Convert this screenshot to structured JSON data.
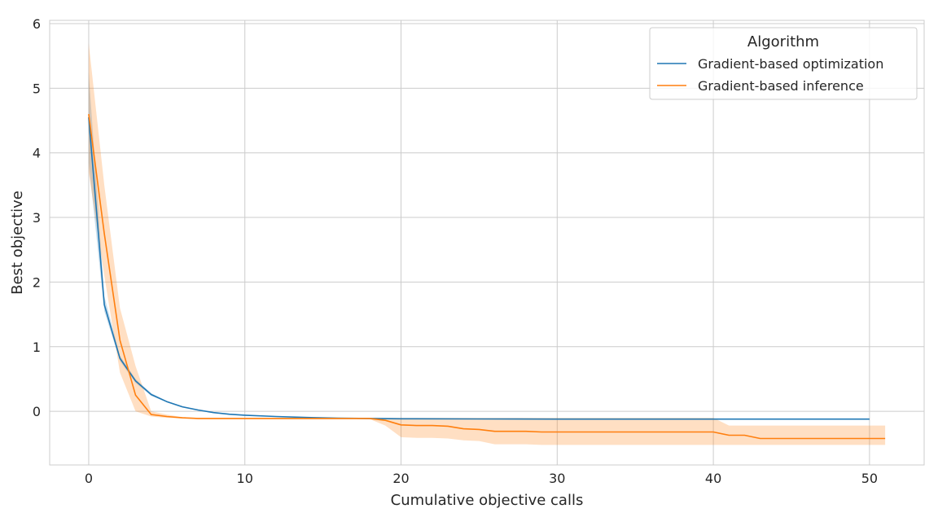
{
  "chart_data": {
    "type": "line",
    "xlabel": "Cumulative objective calls",
    "ylabel": "Best objective",
    "xlim": [
      -2.5,
      53.5
    ],
    "ylim": [
      -0.83,
      6.05
    ],
    "x_ticks": [
      0,
      10,
      20,
      30,
      40,
      50
    ],
    "y_ticks": [
      0,
      1,
      2,
      3,
      4,
      5,
      6
    ],
    "grid": true,
    "legend": {
      "title": "Algorithm",
      "placement": "top-right"
    },
    "series": [
      {
        "name": "Gradient-based optimization",
        "color": "#1f77b4",
        "x": [
          0,
          1,
          2,
          3,
          4,
          5,
          6,
          7,
          8,
          9,
          10,
          12,
          14,
          16,
          18,
          20,
          25,
          30,
          35,
          40,
          45,
          50
        ],
        "y": [
          4.55,
          1.65,
          0.82,
          0.47,
          0.26,
          0.15,
          0.07,
          0.02,
          -0.02,
          -0.045,
          -0.06,
          -0.08,
          -0.095,
          -0.105,
          -0.11,
          -0.115,
          -0.118,
          -0.12,
          -0.12,
          -0.12,
          -0.12,
          -0.12
        ],
        "lower": [
          3.85,
          1.55,
          0.78,
          0.44,
          0.24,
          0.14,
          0.06,
          0.01,
          -0.025,
          -0.05,
          -0.065,
          -0.085,
          -0.1,
          -0.11,
          -0.115,
          -0.12,
          -0.12,
          -0.12,
          -0.12,
          -0.12,
          -0.12,
          -0.12
        ],
        "upper": [
          5.25,
          1.78,
          0.86,
          0.5,
          0.28,
          0.16,
          0.08,
          0.03,
          -0.015,
          -0.04,
          -0.055,
          -0.075,
          -0.09,
          -0.1,
          -0.105,
          -0.11,
          -0.115,
          -0.12,
          -0.12,
          -0.12,
          -0.12,
          -0.12
        ]
      },
      {
        "name": "Gradient-based inference",
        "color": "#ff7f0e",
        "x": [
          0,
          1,
          2,
          3,
          4,
          5,
          6,
          7,
          10,
          15,
          18,
          19,
          20,
          21,
          22,
          23,
          24,
          25,
          26,
          27,
          28,
          29,
          30,
          35,
          40,
          41,
          42,
          43,
          45,
          50,
          51
        ],
        "y": [
          4.6,
          2.75,
          1.1,
          0.25,
          -0.05,
          -0.08,
          -0.1,
          -0.11,
          -0.11,
          -0.11,
          -0.11,
          -0.14,
          -0.21,
          -0.22,
          -0.22,
          -0.23,
          -0.27,
          -0.28,
          -0.31,
          -0.31,
          -0.31,
          -0.32,
          -0.32,
          -0.32,
          -0.32,
          -0.37,
          -0.37,
          -0.42,
          -0.42,
          -0.42,
          -0.42
        ],
        "lower": [
          3.7,
          2.1,
          0.6,
          0.0,
          -0.08,
          -0.1,
          -0.11,
          -0.12,
          -0.12,
          -0.12,
          -0.12,
          -0.22,
          -0.4,
          -0.41,
          -0.41,
          -0.42,
          -0.45,
          -0.46,
          -0.51,
          -0.51,
          -0.51,
          -0.52,
          -0.52,
          -0.52,
          -0.52,
          -0.52,
          -0.52,
          -0.52,
          -0.52,
          -0.52,
          -0.52
        ],
        "upper": [
          5.7,
          3.5,
          1.6,
          0.7,
          0.0,
          -0.05,
          -0.09,
          -0.1,
          -0.1,
          -0.1,
          -0.1,
          -0.1,
          -0.1,
          -0.1,
          -0.1,
          -0.1,
          -0.1,
          -0.1,
          -0.1,
          -0.1,
          -0.1,
          -0.1,
          -0.1,
          -0.1,
          -0.1,
          -0.22,
          -0.22,
          -0.22,
          -0.22,
          -0.22,
          -0.22
        ]
      }
    ]
  }
}
